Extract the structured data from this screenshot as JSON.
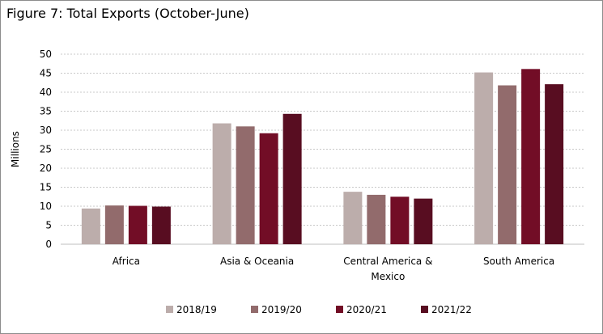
{
  "chart_data": {
    "type": "bar",
    "title": "Figure 7: Total Exports (October-June)",
    "xlabel": "",
    "ylabel": "Millions",
    "ylim": [
      0,
      50
    ],
    "yticks": [
      0,
      5,
      10,
      15,
      20,
      25,
      30,
      35,
      40,
      45,
      50
    ],
    "grid": true,
    "legend_position": "bottom",
    "categories": [
      [
        "Africa"
      ],
      [
        "Asia & Oceania"
      ],
      [
        "Central America &",
        "Mexico"
      ],
      [
        "South America"
      ]
    ],
    "series": [
      {
        "name": "2018/19",
        "color": "#bcadab",
        "values": [
          9.4,
          31.8,
          13.8,
          45.2
        ]
      },
      {
        "name": "2019/20",
        "color": "#926b6c",
        "values": [
          10.2,
          31.0,
          13.0,
          41.8
        ]
      },
      {
        "name": "2020/21",
        "color": "#720d26",
        "values": [
          10.1,
          29.2,
          12.5,
          46.1
        ]
      },
      {
        "name": "2021/22",
        "color": "#580d21",
        "values": [
          9.9,
          34.3,
          12.0,
          42.1
        ]
      }
    ]
  }
}
